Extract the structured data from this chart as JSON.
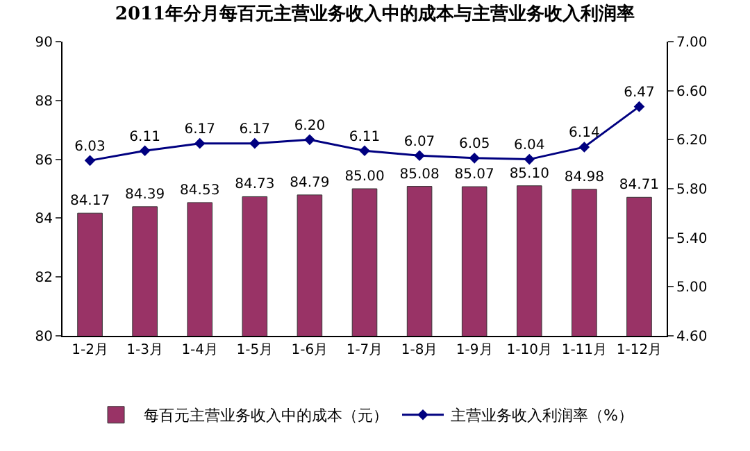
{
  "chart_data": {
    "type": "bar",
    "title": "2011年分月每百元主营业务收入中的成本与主营业务收入利润率",
    "categories": [
      "1-2月",
      "1-3月",
      "1-4月",
      "1-5月",
      "1-6月",
      "1-7月",
      "1-8月",
      "1-9月",
      "1-10月",
      "1-11月",
      "1-12月"
    ],
    "series": [
      {
        "name": "每百元主营业务收入中的成本（元）",
        "color": "#993366",
        "values": [
          84.17,
          84.39,
          84.53,
          84.73,
          84.79,
          85.0,
          85.08,
          85.07,
          85.1,
          84.98,
          84.71
        ],
        "value_labels": [
          "84.17",
          "84.39",
          "84.53",
          "84.73",
          "84.79",
          "85.00",
          "85.08",
          "85.07",
          "85.10",
          "84.98",
          "84.71"
        ]
      },
      {
        "name": "主营业务收入利润率（%）",
        "type": "line",
        "axis": "y2",
        "color": "#000080",
        "marker": "diamond",
        "values": [
          6.03,
          6.11,
          6.17,
          6.17,
          6.2,
          6.11,
          6.07,
          6.05,
          6.04,
          6.14,
          6.47
        ],
        "value_labels": [
          "6.03",
          "6.11",
          "6.17",
          "6.17",
          "6.20",
          "6.11",
          "6.07",
          "6.05",
          "6.04",
          "6.14",
          "6.47"
        ]
      }
    ],
    "ylim": [
      80,
      90
    ],
    "yticks": [
      80,
      82,
      84,
      86,
      88,
      90
    ],
    "y2lim": [
      4.6,
      7.0
    ],
    "y2ticks": [
      {
        "value": 4.6,
        "label": "4.60"
      },
      {
        "value": 5.0,
        "label": "5.00"
      },
      {
        "value": 5.4,
        "label": "5.40"
      },
      {
        "value": 5.8,
        "label": "5.80"
      },
      {
        "value": 6.2,
        "label": "6.20"
      },
      {
        "value": 6.6,
        "label": "6.60"
      },
      {
        "value": 7.0,
        "label": "7.00"
      }
    ],
    "legend": "bottom"
  }
}
